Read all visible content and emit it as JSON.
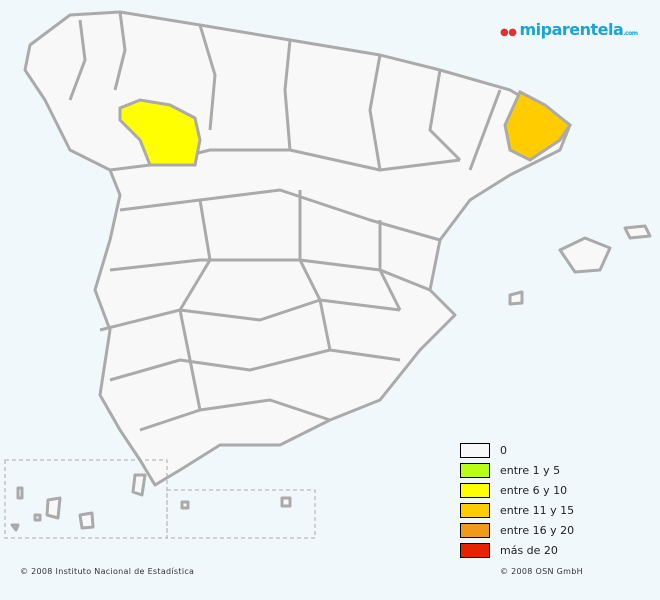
{
  "logo": {
    "text": "miparentela",
    "suffix": ".com"
  },
  "map": {
    "base_fill": "#f8f8f8",
    "border_color": "#aaaaaa",
    "highlighted": [
      {
        "category": "entre 6 y 10",
        "fill": "#ffff00"
      },
      {
        "category": "entre 11 y 15",
        "fill": "#ffcc00"
      }
    ]
  },
  "legend": [
    {
      "label": "0",
      "color": "#f8f8f8"
    },
    {
      "label": "entre 1 y 5",
      "color": "#b8ff16"
    },
    {
      "label": "entre 6 y 10",
      "color": "#ffff00"
    },
    {
      "label": "entre 11 y 15",
      "color": "#ffcc00"
    },
    {
      "label": "entre 16 y 20",
      "color": "#f09a1a"
    },
    {
      "label": "más de 20",
      "color": "#e62200"
    }
  ],
  "footer": {
    "left": "© 2008 Instituto Nacional de Estadística",
    "right": "© 2008 OSN GmbH"
  }
}
